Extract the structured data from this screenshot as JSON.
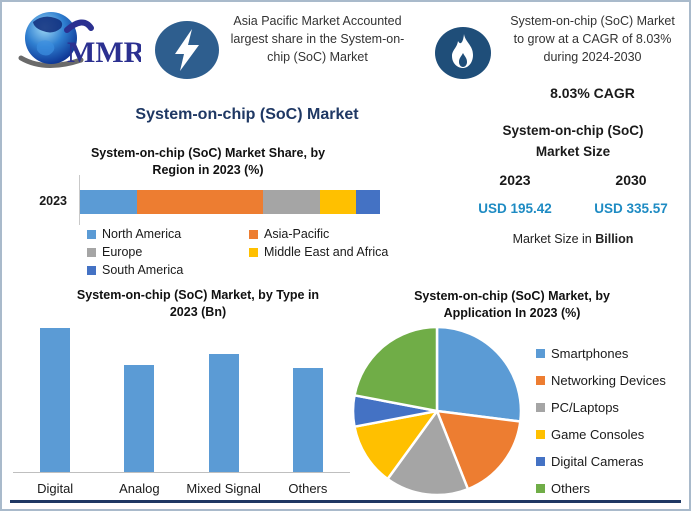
{
  "logo": {
    "text": "MMR"
  },
  "header": {
    "highlight_lines": [
      "Asia Pacific Market Accounted",
      "largest share in the System-on-",
      "chip (SoC) Market"
    ],
    "cagr_lines": [
      "System-on-chip (SoC) Market",
      "to grow at a CAGR of 8.03%",
      "during 2024-2030"
    ],
    "cagr_badge": "8.03% CAGR"
  },
  "main_title": "System-on-chip (SoC) Market",
  "market_size": {
    "title_lines": [
      "System-on-chip (SoC)",
      "Market Size"
    ],
    "years": [
      "2023",
      "2030"
    ],
    "values": [
      "USD 195.42",
      "USD 335.57"
    ],
    "note_prefix": "Market Size in ",
    "note_bold": "Billion"
  },
  "chart_data": [
    {
      "type": "bar",
      "subtype": "stacked-horizontal",
      "title": "System-on-chip (SoC) Market Share, by Region in 2023 (%)",
      "title_lines": [
        "System-on-chip (SoC) Market Share, by",
        "Region in 2023 (%)"
      ],
      "categories": [
        "2023"
      ],
      "series": [
        {
          "name": "North America",
          "values": [
            19
          ],
          "color": "#5B9BD5"
        },
        {
          "name": "Asia-Pacific",
          "values": [
            42
          ],
          "color": "#ED7D31"
        },
        {
          "name": "Europe",
          "values": [
            19
          ],
          "color": "#A5A5A5"
        },
        {
          "name": "Middle East and Africa",
          "values": [
            12
          ],
          "color": "#FFC000"
        },
        {
          "name": "South America",
          "values": [
            8
          ],
          "color": "#4472C4"
        }
      ],
      "xlim": [
        0,
        100
      ],
      "legend_position": "bottom",
      "grid": false
    },
    {
      "type": "bar",
      "title": "System-on-chip (SoC) Market, by Type in 2023 (Bn)",
      "title_lines": [
        "System-on-chip (SoC) Market, by Type in",
        "2023 (Bn)"
      ],
      "categories": [
        "Digital",
        "Analog",
        "Mixed Signal",
        "Others"
      ],
      "values": [
        100,
        74,
        82,
        72
      ],
      "value_scale": "relative heights (no y-axis tick labels shown)",
      "bar_color": "#5B9BD5",
      "grid": false,
      "legend_position": "none"
    },
    {
      "type": "pie",
      "title": "System-on-chip (SoC) Market, by Application In 2023 (%)",
      "title_lines": [
        "System-on-chip (SoC) Market, by",
        "Application In 2023 (%)"
      ],
      "categories": [
        "Smartphones",
        "Networking Devices",
        "PC/Laptops",
        "Game Consoles",
        "Digital Cameras",
        "Others"
      ],
      "values": [
        27,
        17,
        16,
        12,
        6,
        22
      ],
      "colors": [
        "#5B9BD5",
        "#ED7D31",
        "#A5A5A5",
        "#FFC000",
        "#4472C4",
        "#70AD47"
      ],
      "legend_position": "right"
    }
  ],
  "colors": {
    "accent_navy": "#1F3864",
    "usd_blue": "#1E8BC3",
    "lightning_circle": "#2E5E8E",
    "flame_circle": "#1F4E79",
    "border": "#A9BACB"
  }
}
